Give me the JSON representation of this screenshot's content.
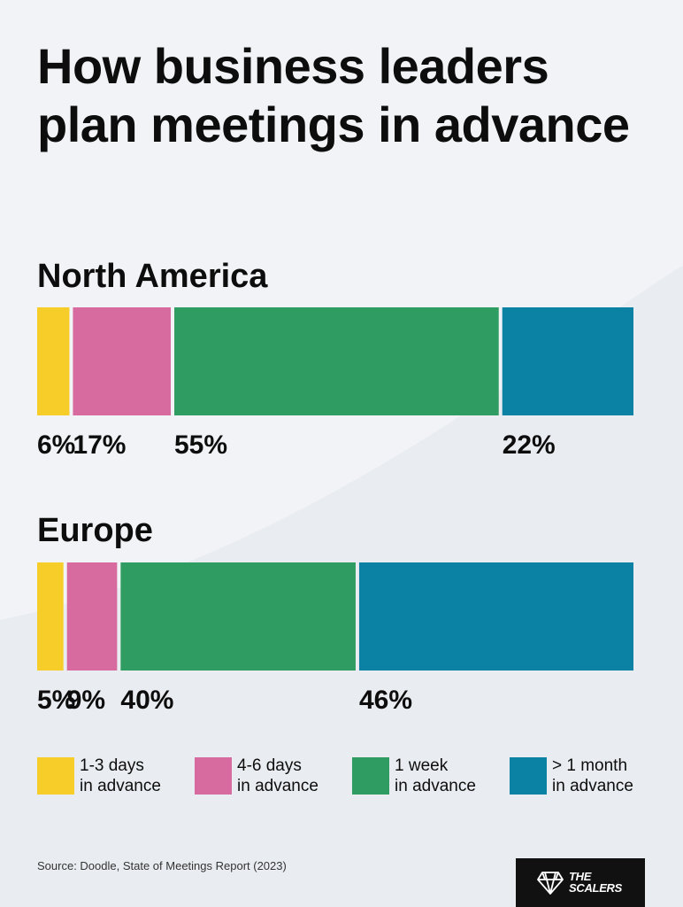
{
  "title": "How business leaders plan meetings in advance",
  "chart_data": [
    {
      "type": "bar",
      "stacked": true,
      "orientation": "horizontal",
      "title": "North America",
      "categories": [
        "1-3 days in advance",
        "4-6 days in advance",
        "1 week in advance",
        "> 1 month in advance"
      ],
      "values": [
        6,
        17,
        55,
        22
      ],
      "labels": [
        "6%",
        "17%",
        "55%",
        "22%"
      ],
      "colors": [
        "#f7ce29",
        "#d76a9f",
        "#2f9d62",
        "#0b81a4"
      ]
    },
    {
      "type": "bar",
      "stacked": true,
      "orientation": "horizontal",
      "title": "Europe",
      "categories": [
        "1-3 days in advance",
        "4-6 days in advance",
        "1 week in advance",
        "> 1 month in advance"
      ],
      "values": [
        5,
        9,
        40,
        46
      ],
      "labels": [
        "5%",
        "9%",
        "40%",
        "46%"
      ],
      "colors": [
        "#f7ce29",
        "#d76a9f",
        "#2f9d62",
        "#0b81a4"
      ]
    }
  ],
  "legend": [
    {
      "label": "1-3 days\nin advance",
      "color": "#f7ce29"
    },
    {
      "label": "4-6 days\nin advance",
      "color": "#d76a9f"
    },
    {
      "label": "1 week\nin advance",
      "color": "#2f9d62"
    },
    {
      "label": "> 1 month\nin advance",
      "color": "#0b81a4"
    }
  ],
  "source": "Source: Doodle, State of Meetings Report (2023)",
  "logo": {
    "text": "THE\nSCALERS",
    "icon": "diamond-logo-icon"
  }
}
